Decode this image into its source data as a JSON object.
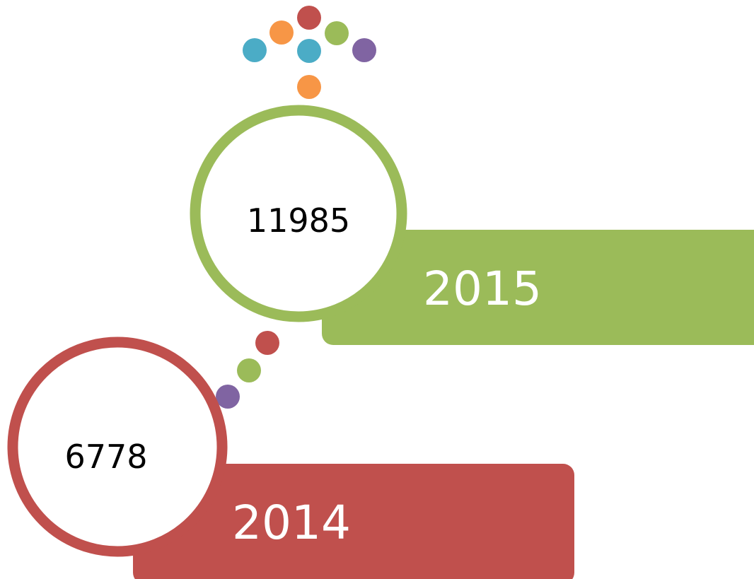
{
  "items": [
    {
      "year": "2015",
      "value": "11985"
    },
    {
      "year": "2014",
      "value": "6778"
    }
  ]
}
